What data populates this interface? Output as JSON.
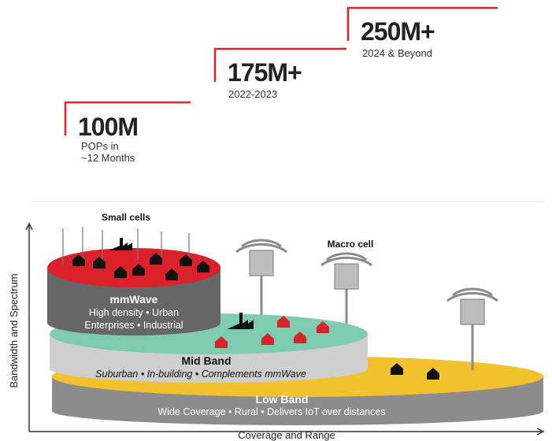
{
  "timeline": [
    {
      "value": "100M",
      "lines": [
        "POPs in",
        "~12 Months"
      ]
    },
    {
      "value": "175M+",
      "lines": [
        "2022-2023"
      ]
    },
    {
      "value": "250M+",
      "lines": [
        "2024 & Beyond"
      ]
    }
  ],
  "diagram": {
    "y_axis": "Bandwidth and Spectrum",
    "x_axis": "Coverage and Range",
    "small_cells": "Small cells",
    "macro_cell": "Macro cell",
    "bands": [
      {
        "name": "mmWave",
        "lines": [
          "High density • Urban",
          "Enterprises • Industrial"
        ]
      },
      {
        "name": "Mid Band",
        "lines": [
          "Suburban • In-building • Complements mmWave"
        ]
      },
      {
        "name": "Low Band",
        "lines": [
          "Wide Coverage • Rural • Delivers IoT over distances"
        ]
      }
    ]
  }
}
